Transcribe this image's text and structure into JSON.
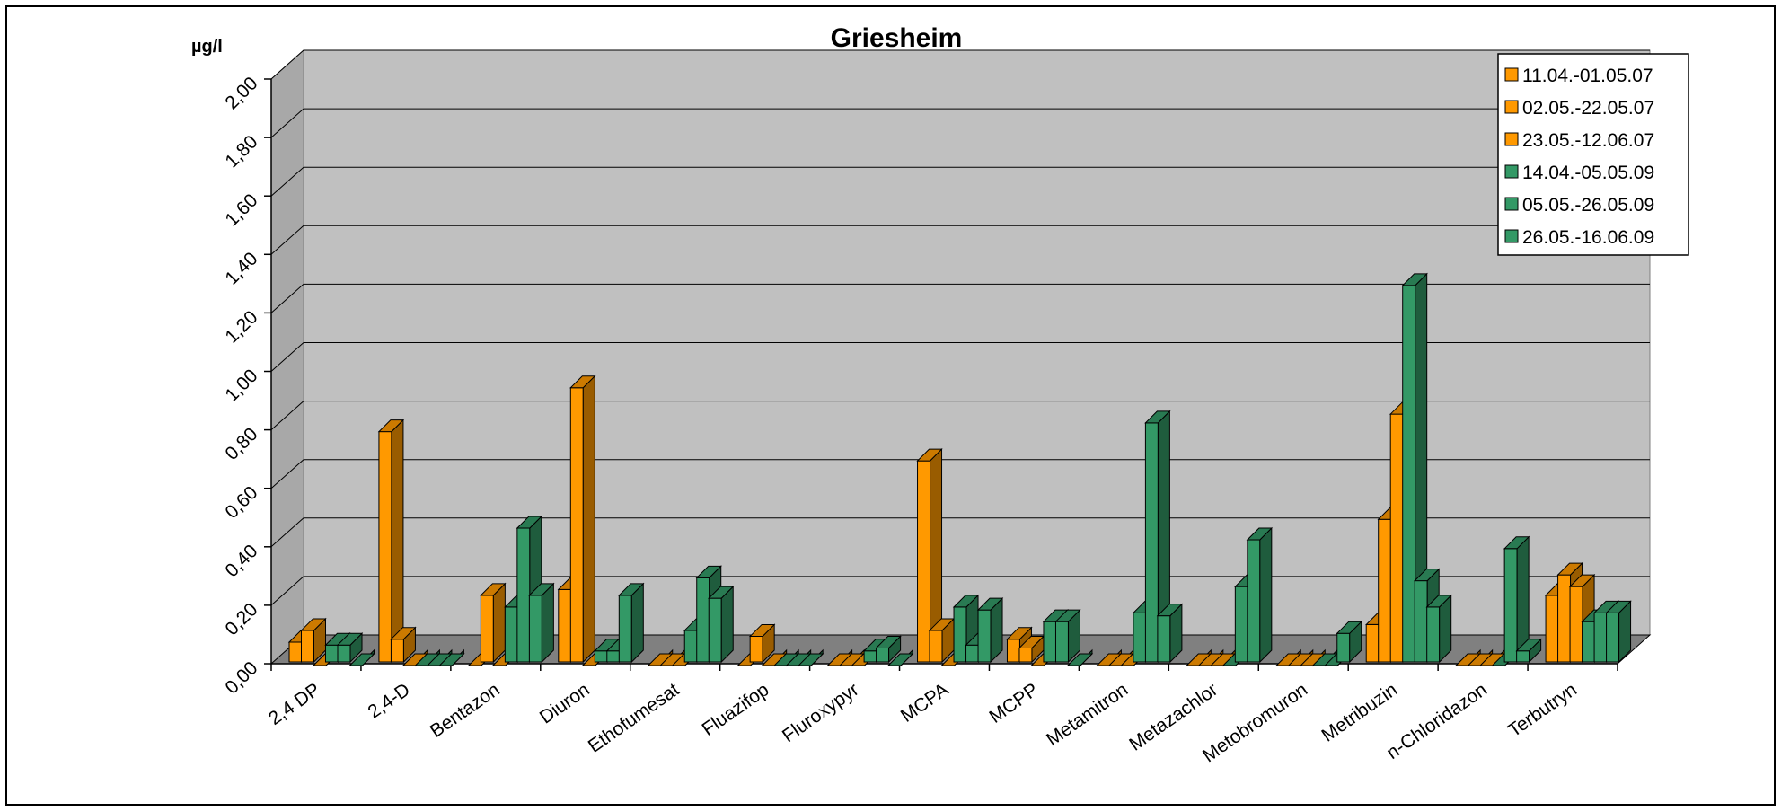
{
  "chart_data": {
    "type": "bar",
    "title": "Griesheim",
    "ylabel": "µg/l",
    "xlabel": "",
    "ylim": [
      0,
      2.0
    ],
    "yticks": [
      "0,00",
      "0,20",
      "0,40",
      "0,60",
      "0,80",
      "1,00",
      "1,20",
      "1,40",
      "1,60",
      "1,80",
      "2,00"
    ],
    "grid": true,
    "legend_position": "top-right",
    "categories": [
      "2,4 DP",
      "2,4-D",
      "Bentazon",
      "Diuron",
      "Ethofumesat",
      "Fluazifop",
      "Fluroxypyr",
      "MCPA",
      "MCPP",
      "Metamitron",
      "Metazachlor",
      "Metobromuron",
      "Metribuzin",
      "n-Chloridazon",
      "Terbutryn"
    ],
    "series": [
      {
        "name": "11.04.-01.05.07",
        "color": "#ff9900",
        "values": [
          0.08,
          0.8,
          0.0,
          0.26,
          0.0,
          0.0,
          0.0,
          0.7,
          0.09,
          0.0,
          0.0,
          0.0,
          0.14,
          0.0,
          0.24
        ]
      },
      {
        "name": "02.05.-22.05.07",
        "color": "#ff9900",
        "values": [
          0.12,
          0.09,
          0.24,
          0.95,
          0.0,
          0.1,
          0.0,
          0.12,
          0.06,
          0.0,
          0.0,
          0.0,
          0.5,
          0.0,
          0.31
        ]
      },
      {
        "name": "23.05.-12.06.07",
        "color": "#ff9900",
        "values": [
          0.0,
          0.0,
          0.0,
          0.0,
          0.0,
          0.0,
          0.0,
          0.0,
          0.0,
          0.0,
          0.0,
          0.0,
          0.86,
          0.0,
          0.27
        ]
      },
      {
        "name": "14.04.-05.05.09",
        "color": "#339966",
        "values": [
          0.07,
          0.0,
          0.2,
          0.05,
          0.12,
          0.0,
          0.05,
          0.2,
          0.15,
          0.18,
          0.0,
          0.0,
          1.3,
          0.0,
          0.15
        ]
      },
      {
        "name": "05.05.-26.05.09",
        "color": "#339966",
        "values": [
          0.07,
          0.0,
          0.47,
          0.05,
          0.3,
          0.0,
          0.06,
          0.07,
          0.15,
          0.83,
          0.27,
          0.0,
          0.29,
          0.4,
          0.18
        ]
      },
      {
        "name": "26.05.-16.06.09",
        "color": "#339966",
        "values": [
          0.0,
          0.0,
          0.24,
          0.24,
          0.23,
          0.0,
          0.0,
          0.19,
          0.0,
          0.17,
          0.43,
          0.11,
          0.2,
          0.05,
          0.18
        ]
      }
    ]
  }
}
